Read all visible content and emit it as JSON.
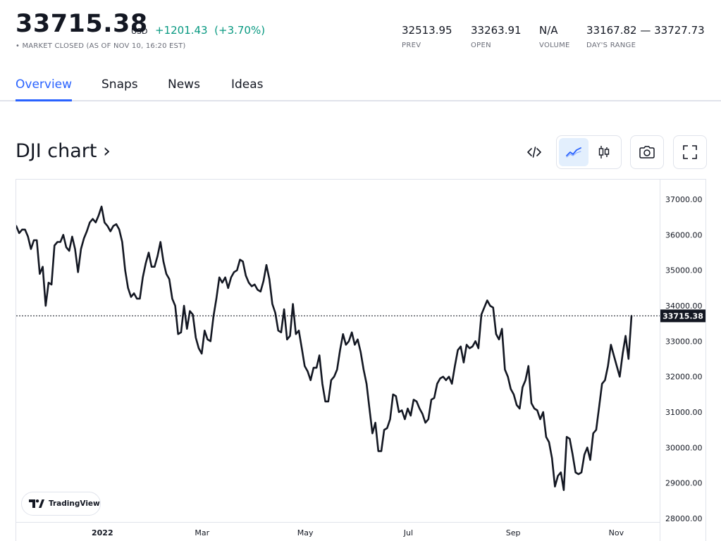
{
  "quote": {
    "last_price": "33715.38",
    "currency": "USD",
    "change": "+1201.43",
    "change_percent": "(+3.70%)",
    "market_status": "• MARKET CLOSED (AS OF NOV 10, 16:20 EST)"
  },
  "stats": [
    {
      "value": "32513.95",
      "label": "PREV"
    },
    {
      "value": "33263.91",
      "label": "OPEN"
    },
    {
      "value": "N/A",
      "label": "VOLUME"
    },
    {
      "value": "33167.82 — 33727.73",
      "label": "DAY'S RANGE"
    }
  ],
  "tabs": [
    {
      "label": "Overview",
      "active": true
    },
    {
      "label": "Snaps",
      "active": false
    },
    {
      "label": "News",
      "active": false
    },
    {
      "label": "Ideas",
      "active": false
    }
  ],
  "chart_title": "DJI chart ›",
  "toolbar": {
    "embed_icon": "code-icon",
    "line_icon": "line-chart-icon",
    "candle_icon": "candlestick-icon",
    "snapshot_icon": "camera-icon",
    "fullscreen_icon": "fullscreen-icon"
  },
  "branding": {
    "label": "TradingView"
  },
  "colors": {
    "line": "#131722",
    "accent": "#2962ff",
    "positive": "#089981",
    "price_tag": "#131722"
  },
  "chart_data": {
    "type": "line",
    "title": "",
    "x_start_date": "2021-11-11",
    "x_end_date": "2022-11-10",
    "x_tick_labels": [
      {
        "label": "2022",
        "date": "2022-01-01"
      },
      {
        "label": "Mar",
        "date": "2022-03-01"
      },
      {
        "label": "May",
        "date": "2022-05-01"
      },
      {
        "label": "Jul",
        "date": "2022-07-01"
      },
      {
        "label": "Sep",
        "date": "2022-09-01"
      },
      {
        "label": "Nov",
        "date": "2022-11-01"
      }
    ],
    "y_tick_labels": [
      "37000.00",
      "36000.00",
      "35000.00",
      "34000.00",
      "33000.00",
      "32000.00",
      "31000.00",
      "30000.00",
      "29000.00",
      "28000.00"
    ],
    "y_ticks": [
      37000,
      36000,
      35000,
      34000,
      33000,
      32000,
      31000,
      30000,
      29000,
      28000
    ],
    "ylim": [
      27900,
      37300
    ],
    "last_value": 33715.38,
    "last_value_label": "33715.38",
    "series": [
      {
        "values": [
          36250,
          36050,
          36150,
          36150,
          35950,
          35600,
          35850,
          35850,
          34900,
          35100,
          34000,
          34650,
          34600,
          35700,
          35800,
          35800,
          36000,
          35650,
          35550,
          35950,
          35600,
          34950,
          35600,
          35900,
          36100,
          36350,
          36450,
          36350,
          36550,
          36800,
          36350,
          36250,
          36100,
          36250,
          36300,
          36150,
          35800,
          35000,
          34500,
          34250,
          34350,
          34200,
          34200,
          34800,
          35200,
          35500,
          35100,
          35100,
          35400,
          35800,
          35250,
          34900,
          34750,
          34200,
          34000,
          33200,
          33250,
          34000,
          33350,
          33850,
          33750,
          33100,
          32800,
          32650,
          33300,
          33050,
          33000,
          33700,
          34200,
          34800,
          34650,
          34800,
          34500,
          34800,
          34950,
          35000,
          35300,
          35250,
          34850,
          34650,
          34550,
          34600,
          34450,
          34400,
          34700,
          35150,
          34750,
          34050,
          33800,
          33300,
          33250,
          33900,
          33050,
          33150,
          34050,
          33200,
          33300,
          32800,
          32300,
          32150,
          31900,
          32250,
          32250,
          32600,
          31800,
          31300,
          31300,
          31900,
          32000,
          32200,
          32750,
          33200,
          32900,
          33000,
          33250,
          32900,
          33050,
          32700,
          32200,
          31800,
          31100,
          30400,
          30700,
          29900,
          29900,
          30500,
          30550,
          30800,
          31500,
          31450,
          31000,
          31050,
          30800,
          31100,
          30900,
          31350,
          31300,
          31100,
          30950,
          30700,
          30800,
          31350,
          31400,
          31800,
          31950,
          32000,
          31900,
          32000,
          31800,
          32300,
          32750,
          32850,
          32400,
          32900,
          32800,
          32850,
          33000,
          32800,
          33750,
          33950,
          34150,
          34000,
          33950,
          33200,
          33050,
          33350,
          32200,
          32000,
          31650,
          31500,
          31200,
          31100,
          31700,
          31900,
          32300,
          31250,
          31100,
          31050,
          30800,
          31000,
          30300,
          30150,
          29700,
          28900,
          29200,
          29300,
          28800,
          30300,
          30250,
          29800,
          29300,
          29250,
          29300,
          29800,
          30000,
          29650,
          30400,
          30500,
          31150,
          31800,
          31900,
          32300,
          32900,
          32600,
          32300,
          32000,
          32650,
          33150,
          32500,
          33715.38
        ]
      }
    ]
  }
}
